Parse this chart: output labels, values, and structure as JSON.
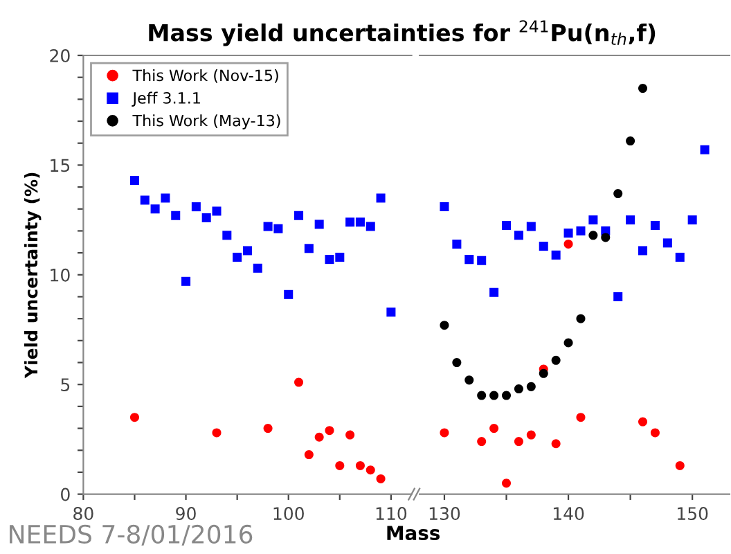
{
  "chart_data": [
    {
      "type": "scatter",
      "title": "Mass yield uncertainties for $^{241}$Pu(n$_{th}$,f)",
      "xlabel": "Mass",
      "ylabel": "Yield uncertainty (%)",
      "annotations": [
        "NEEDS 7-8/01/2016"
      ],
      "xlim": [
        80,
        112
      ],
      "xticks": [
        80,
        {
          "value": 85,
          "label": null
        },
        90,
        {
          "value": 95,
          "label": null
        },
        100,
        {
          "value": 105,
          "label": null
        },
        110
      ],
      "ylim": [
        0,
        20
      ],
      "yticks": [
        0,
        {
          "value": 1,
          "label": null
        },
        {
          "value": 2,
          "label": null
        },
        {
          "value": 3,
          "label": null
        },
        {
          "value": 4,
          "label": null
        },
        5,
        {
          "value": 6,
          "label": null
        },
        {
          "value": 7,
          "label": null
        },
        {
          "value": 8,
          "label": null
        },
        {
          "value": 9,
          "label": null
        },
        10,
        {
          "value": 11,
          "label": null
        },
        {
          "value": 12,
          "label": null
        },
        {
          "value": 13,
          "label": null
        },
        {
          "value": 14,
          "label": null
        },
        15,
        {
          "value": 16,
          "label": null
        },
        {
          "value": 17,
          "label": null
        },
        {
          "value": 18,
          "label": null
        },
        {
          "value": 19,
          "label": null
        },
        20
      ],
      "grid": false,
      "series": [
        {
          "color": "#ff0000",
          "marker": "circle",
          "x": [
            85,
            93,
            98,
            101,
            102,
            103,
            104,
            105,
            106,
            107,
            108,
            109
          ],
          "values": [
            3.5,
            2.8,
            3.0,
            5.1,
            1.8,
            2.6,
            2.9,
            1.3,
            2.7,
            1.3,
            1.1,
            0.7
          ]
        },
        {
          "color": "#0000ff",
          "marker": "square",
          "x": [
            85,
            86,
            87,
            88,
            89,
            90,
            91,
            92,
            93,
            94,
            95,
            96,
            97,
            98,
            99,
            100,
            101,
            102,
            103,
            104,
            105,
            106,
            107,
            108,
            109,
            110
          ],
          "values": [
            14.3,
            13.4,
            13.0,
            13.5,
            12.7,
            9.7,
            13.1,
            12.6,
            12.9,
            11.8,
            10.8,
            11.1,
            10.3,
            12.2,
            12.1,
            9.1,
            12.7,
            11.2,
            12.3,
            10.7,
            10.8,
            12.4,
            12.4,
            12.2,
            13.5,
            8.3
          ]
        }
      ]
    },
    {
      "type": "scatter",
      "tick_labels": "x",
      "xlim": [
        128,
        153
      ],
      "xticks": [
        130,
        {
          "value": 135,
          "label": null
        },
        140,
        {
          "value": 145,
          "label": null
        },
        150
      ],
      "ylim": [
        0,
        20
      ],
      "grid": false,
      "legend": "top left",
      "series": [
        {
          "name": "This Work (Nov-15)",
          "color": "#ff0000",
          "marker": "circle",
          "x": [
            130,
            133,
            134,
            135,
            136,
            137,
            138,
            139,
            140,
            141,
            146,
            147,
            149
          ],
          "values": [
            2.8,
            2.4,
            3.0,
            0.5,
            2.4,
            2.7,
            5.7,
            2.3,
            11.4,
            3.5,
            3.3,
            2.8,
            1.3
          ]
        },
        {
          "name": "Jeff 3.1.1",
          "color": "#0000ff",
          "marker": "square",
          "x": [
            130,
            131,
            132,
            133,
            134,
            135,
            136,
            137,
            138,
            139,
            140,
            141,
            142,
            143,
            144,
            145,
            146,
            147,
            148,
            149,
            150,
            151
          ],
          "values": [
            13.1,
            11.4,
            10.7,
            10.65,
            9.2,
            12.25,
            11.8,
            12.2,
            11.3,
            10.9,
            11.9,
            12.0,
            12.5,
            12.0,
            9.0,
            12.5,
            11.1,
            12.25,
            11.45,
            10.8,
            12.5,
            15.7
          ]
        },
        {
          "name": "This Work (May-13)",
          "color": "#000000",
          "marker": "circle",
          "x": [
            130,
            131,
            132,
            133,
            134,
            135,
            136,
            137,
            138,
            139,
            140,
            141,
            142,
            143,
            144,
            145,
            146
          ],
          "values": [
            7.7,
            6.0,
            5.2,
            4.5,
            4.5,
            4.5,
            4.8,
            4.9,
            5.5,
            6.1,
            6.9,
            8.0,
            11.8,
            11.7,
            13.7,
            16.1,
            18.5
          ]
        }
      ]
    }
  ]
}
